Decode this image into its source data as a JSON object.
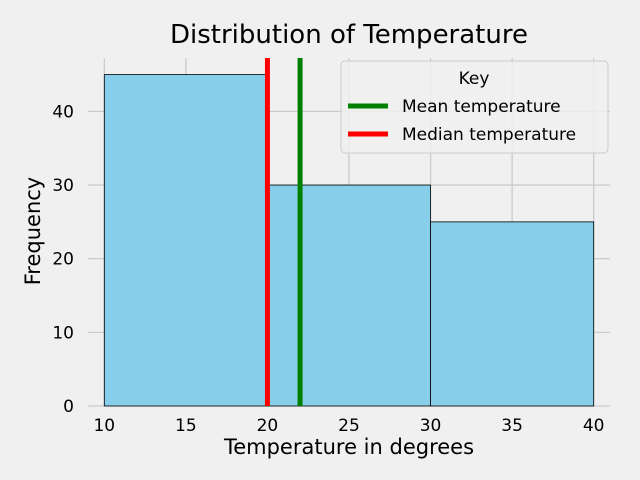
{
  "chart_data": {
    "type": "bar",
    "subtype": "histogram",
    "title": "Distribution of Temperature",
    "xlabel": "Temperature in degrees",
    "ylabel": "Frequency",
    "xlim": [
      9,
      41
    ],
    "ylim": [
      0,
      47.25
    ],
    "x_ticks": [
      10,
      15,
      20,
      25,
      30,
      35,
      40
    ],
    "y_ticks": [
      0,
      10,
      20,
      30,
      40
    ],
    "grid": true,
    "bins": [
      {
        "x0": 10,
        "x1": 20,
        "value": 45
      },
      {
        "x0": 20,
        "x1": 30,
        "value": 30
      },
      {
        "x0": 30,
        "x1": 40,
        "value": 25
      }
    ],
    "bar_color": "#87ceeb",
    "edge_color": "#000000",
    "vlines": [
      {
        "name": "Mean temperature",
        "x": 22,
        "color": "#008000"
      },
      {
        "name": "Median temperature",
        "x": 20,
        "color": "#ff0000"
      }
    ],
    "legend": {
      "title": "Key",
      "placement": "top-right",
      "entries": [
        "Mean temperature",
        "Median temperature"
      ]
    },
    "background_color": "#f0f0f0",
    "grid_color": "#cbcbcb"
  }
}
